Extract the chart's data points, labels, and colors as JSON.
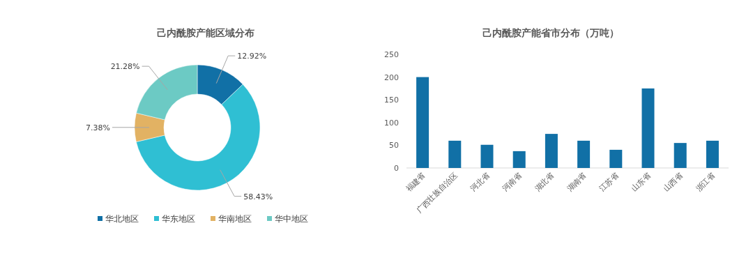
{
  "chart_data": [
    {
      "type": "donut",
      "title": "己内酰胺产能区域分布",
      "categories": [
        "华北地区",
        "华东地区",
        "华南地区",
        "华中地区"
      ],
      "values": [
        12.92,
        58.43,
        7.38,
        21.28
      ],
      "colors": [
        "#1170a6",
        "#2fbfd3",
        "#e2b263",
        "#6ccac4"
      ],
      "value_labels": [
        "12.92%",
        "58.43%",
        "7.38%",
        "21.28%"
      ],
      "legend": "bottom"
    },
    {
      "type": "bar",
      "title": "己内酰胺产能省市分布（万吨）",
      "categories": [
        "福建省",
        "广西壮族自治区",
        "河北省",
        "河南省",
        "湖北省",
        "湖南省",
        "江苏省",
        "山东省",
        "山西省",
        "浙江省"
      ],
      "values": [
        200,
        60,
        51,
        37,
        75,
        60,
        40,
        175,
        55,
        60
      ],
      "color": "#1170a6",
      "ylim": [
        0,
        250
      ],
      "yticks": [
        0,
        50,
        100,
        150,
        200,
        250
      ],
      "grid": false
    }
  ]
}
